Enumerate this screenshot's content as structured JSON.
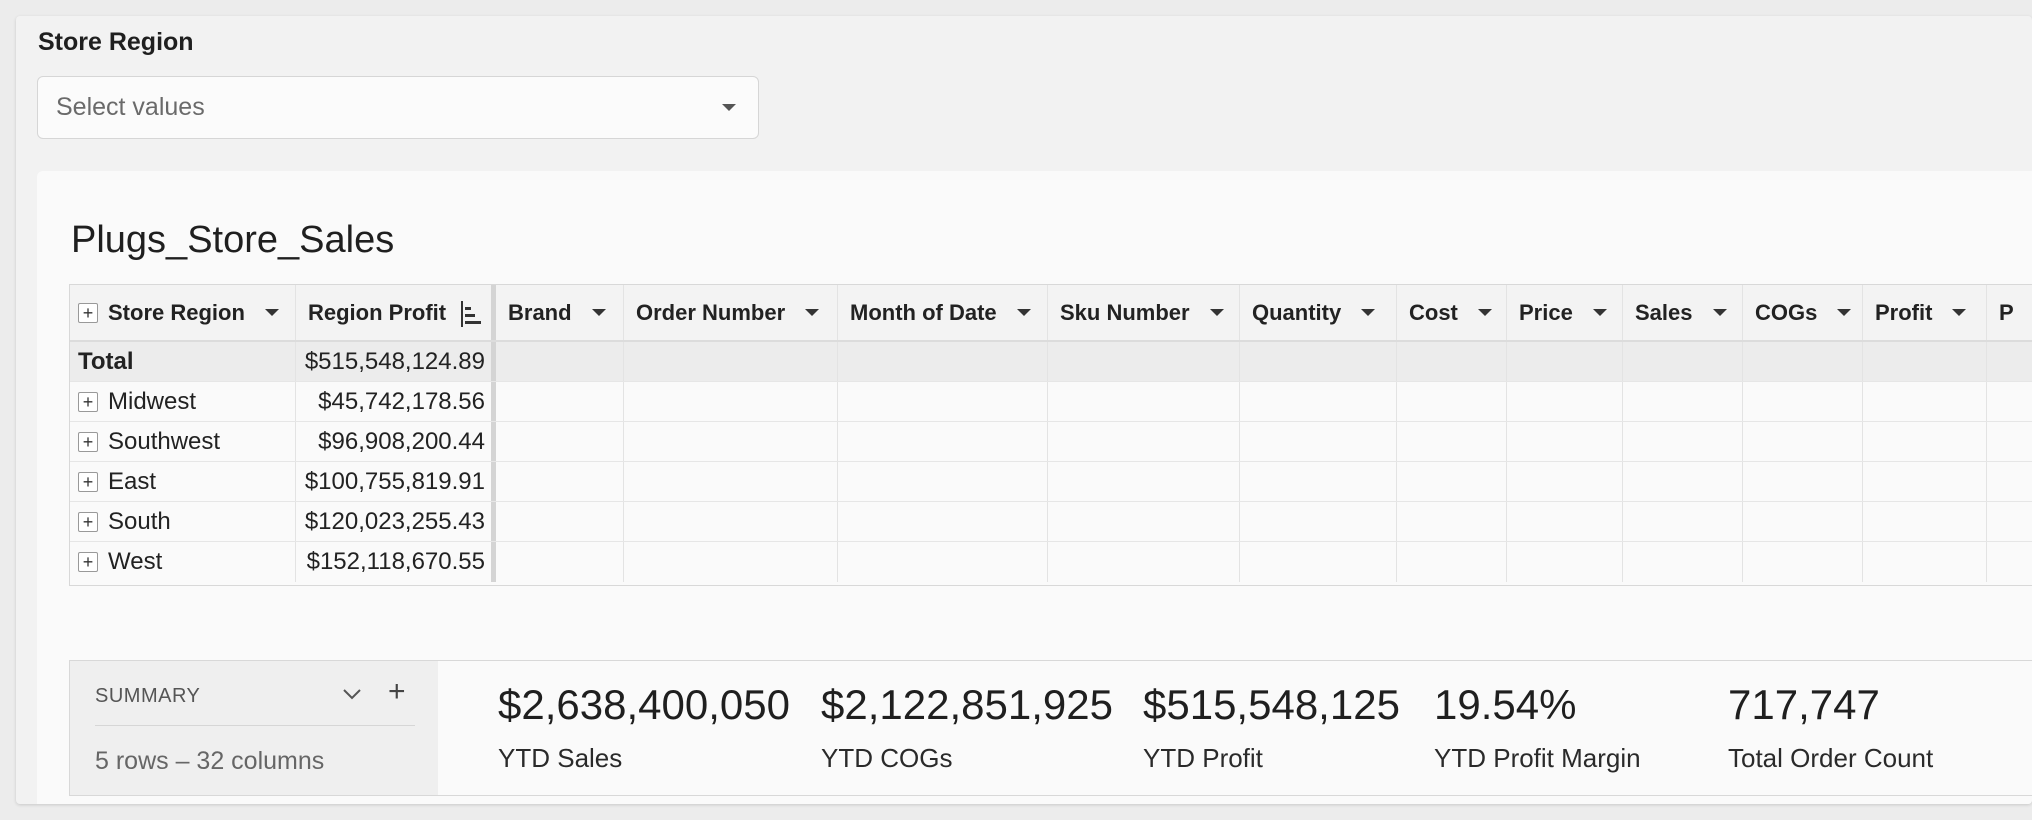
{
  "filter": {
    "label": "Store Region",
    "placeholder": "Select values"
  },
  "table": {
    "title": "Plugs_Store_Sales",
    "columns": [
      "Store Region",
      "Region Profit",
      "Brand",
      "Order Number",
      "Month of Date",
      "Sku Number",
      "Quantity",
      "Cost",
      "Price",
      "Sales",
      "COGs",
      "Profit",
      "P"
    ],
    "total_label": "Total",
    "total_value": "$515,548,124.89",
    "rows": [
      {
        "region": "Midwest",
        "profit": "$45,742,178.56"
      },
      {
        "region": "Southwest",
        "profit": "$96,908,200.44"
      },
      {
        "region": "East",
        "profit": "$100,755,819.91"
      },
      {
        "region": "South",
        "profit": "$120,023,255.43"
      },
      {
        "region": "West",
        "profit": "$152,118,670.55"
      }
    ]
  },
  "summary": {
    "title": "SUMMARY",
    "subtitle": "5 rows – 32 columns",
    "kpis": [
      {
        "value": "$2,638,400,050",
        "label": "YTD Sales"
      },
      {
        "value": "$2,122,851,925",
        "label": "YTD COGs"
      },
      {
        "value": "$515,548,125",
        "label": "YTD Profit"
      },
      {
        "value": "19.54%",
        "label": "YTD Profit Margin"
      },
      {
        "value": "717,747",
        "label": "Total Order Count"
      }
    ]
  }
}
